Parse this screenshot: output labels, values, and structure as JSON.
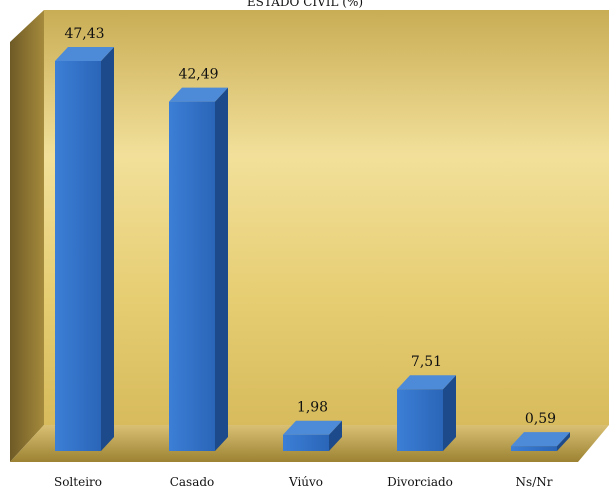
{
  "chart_data": {
    "type": "bar",
    "title": "ESTADO CIVIL (%)",
    "categories": [
      "Solteiro",
      "Casado",
      "Viúvo",
      "Divorciado",
      "Ns/Nr"
    ],
    "values": [
      47.43,
      42.49,
      1.98,
      7.51,
      0.59
    ],
    "value_labels": [
      "47,43",
      "42,49",
      "1,98",
      "7,51",
      "0,59"
    ],
    "xlabel": "",
    "ylabel": "",
    "ylim": [
      0,
      50
    ],
    "grid": false,
    "legend": "none",
    "bar_color": "#2e6fc6",
    "bar_side_color": "#1d4a8a",
    "bar_top_color": "#4d8ad8",
    "wall_color": "#e8cf78",
    "floor_color": "#b89a3e"
  }
}
